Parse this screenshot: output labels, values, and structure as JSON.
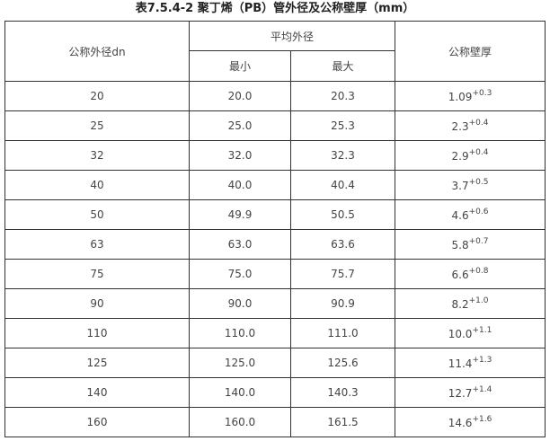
{
  "title": "表7.5.4-2 聚丁烯（PB）管外径及公称壁厚（mm）",
  "headers": {
    "dn": "公称外径dn",
    "avg_od": "平均外径",
    "min": "最小",
    "max": "最大",
    "wall": "公称壁厚"
  },
  "rows": [
    {
      "dn": "20",
      "min": "20.0",
      "max": "20.3",
      "wall": "1.09",
      "tol": "+0.3"
    },
    {
      "dn": "25",
      "min": "25.0",
      "max": "25.3",
      "wall": "2.3",
      "tol": "+0.4"
    },
    {
      "dn": "32",
      "min": "32.0",
      "max": "32.3",
      "wall": "2.9",
      "tol": "+0.4"
    },
    {
      "dn": "40",
      "min": "40.0",
      "max": "40.4",
      "wall": "3.7",
      "tol": "+0.5"
    },
    {
      "dn": "50",
      "min": "49.9",
      "max": "50.5",
      "wall": "4.6",
      "tol": "+0.6"
    },
    {
      "dn": "63",
      "min": "63.0",
      "max": "63.6",
      "wall": "5.8",
      "tol": "+0.7"
    },
    {
      "dn": "75",
      "min": "75.0",
      "max": "75.7",
      "wall": "6.6",
      "tol": "+0.8"
    },
    {
      "dn": "90",
      "min": "90.0",
      "max": "90.9",
      "wall": "8.2",
      "tol": "+1.0"
    },
    {
      "dn": "110",
      "min": "110.0",
      "max": "111.0",
      "wall": "10.0",
      "tol": "+1.1"
    },
    {
      "dn": "125",
      "min": "125.0",
      "max": "125.6",
      "wall": "11.4",
      "tol": "+1.3"
    },
    {
      "dn": "140",
      "min": "140.0",
      "max": "140.3",
      "wall": "12.7",
      "tol": "+1.4"
    },
    {
      "dn": "160",
      "min": "160.0",
      "max": "161.5",
      "wall": "14.6",
      "tol": "+1.6"
    }
  ]
}
